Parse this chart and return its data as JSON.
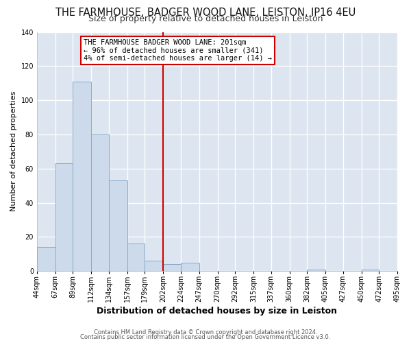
{
  "title": "THE FARMHOUSE, BADGER WOOD LANE, LEISTON, IP16 4EU",
  "subtitle": "Size of property relative to detached houses in Leiston",
  "xlabel": "Distribution of detached houses by size in Leiston",
  "ylabel": "Number of detached properties",
  "bar_color": "#ccdaeb",
  "bar_edge_color": "#8aaac8",
  "background_color": "#dde6f0",
  "figure_color": "#ffffff",
  "grid_color": "#ffffff",
  "vline_x": 202,
  "vline_color": "#cc0000",
  "bin_edges": [
    44,
    67,
    89,
    112,
    134,
    157,
    179,
    202,
    224,
    247,
    270,
    292,
    315,
    337,
    360,
    382,
    405,
    427,
    450,
    472,
    495
  ],
  "bar_heights": [
    14,
    63,
    111,
    80,
    53,
    16,
    6,
    4,
    5,
    0,
    0,
    0,
    0,
    0,
    0,
    1,
    0,
    0,
    1,
    0
  ],
  "ylim": [
    0,
    140
  ],
  "yticks": [
    0,
    20,
    40,
    60,
    80,
    100,
    120,
    140
  ],
  "xtick_labels": [
    "44sqm",
    "67sqm",
    "89sqm",
    "112sqm",
    "134sqm",
    "157sqm",
    "179sqm",
    "202sqm",
    "224sqm",
    "247sqm",
    "270sqm",
    "292sqm",
    "315sqm",
    "337sqm",
    "360sqm",
    "382sqm",
    "405sqm",
    "427sqm",
    "450sqm",
    "472sqm",
    "495sqm"
  ],
  "annotation_title": "THE FARMHOUSE BADGER WOOD LANE: 201sqm",
  "annotation_line1": "← 96% of detached houses are smaller (341)",
  "annotation_line2": "4% of semi-detached houses are larger (14) →",
  "footer1": "Contains HM Land Registry data © Crown copyright and database right 2024.",
  "footer2": "Contains public sector information licensed under the Open Government Licence v3.0.",
  "title_fontsize": 10.5,
  "subtitle_fontsize": 9,
  "xlabel_fontsize": 9,
  "ylabel_fontsize": 8,
  "tick_fontsize": 7,
  "annotation_fontsize": 7.5,
  "footer_fontsize": 6
}
